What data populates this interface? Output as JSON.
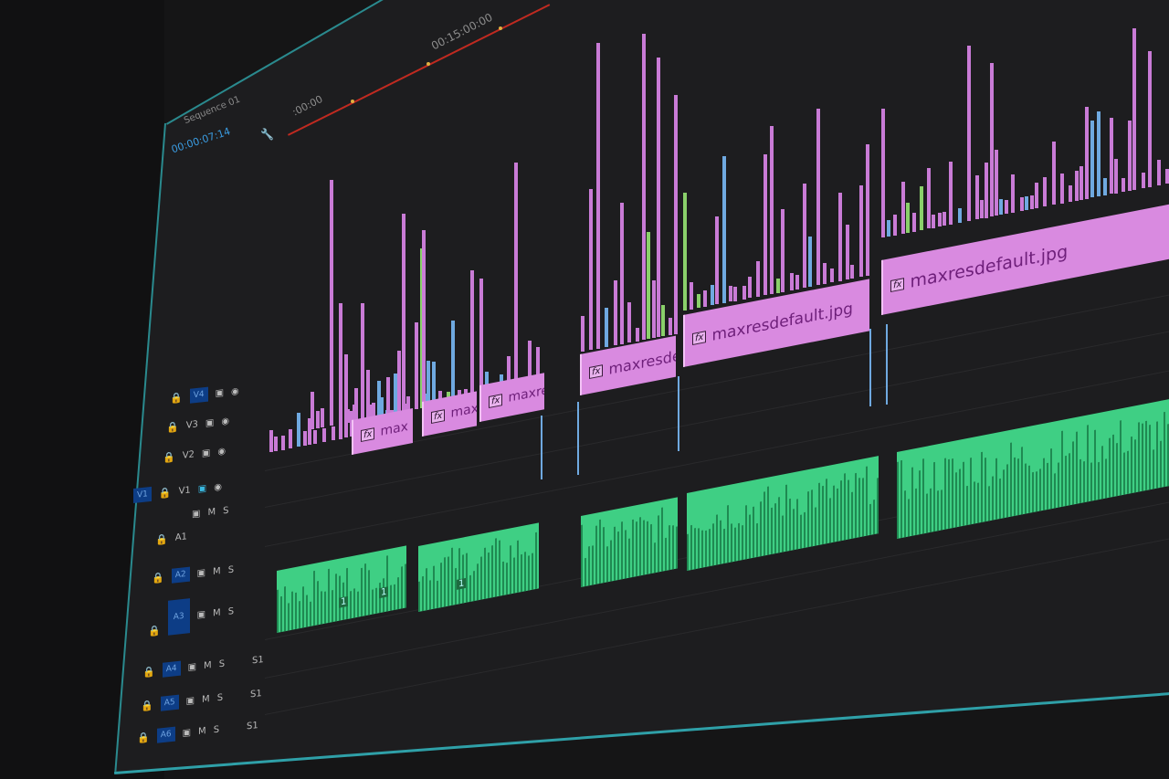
{
  "sequence": {
    "name": "Sequence 01",
    "timecode": "00:00:07:14"
  },
  "ruler": {
    "start_label": ":00:00",
    "mid_label": "00:15:00:00",
    "playhead_color": "#c02a20"
  },
  "tracks": {
    "video": [
      {
        "label": "V4"
      },
      {
        "label": "V3"
      },
      {
        "label": "V2"
      },
      {
        "label": "V1"
      }
    ],
    "audio": [
      {
        "label": "A1"
      },
      {
        "label": "A2",
        "m": "M",
        "s": "S"
      },
      {
        "label": "A3",
        "m": "M",
        "s": "S"
      },
      {
        "label": "A4",
        "m": "M",
        "s": "S",
        "extra": "S1"
      },
      {
        "label": "A5",
        "m": "M",
        "s": "S",
        "extra": "S1"
      },
      {
        "label": "A6",
        "m": "M",
        "s": "S",
        "extra": "S1"
      }
    ],
    "source_patch": "V1",
    "a1_m": "M",
    "a1_s": "S"
  },
  "video_clips": [
    {
      "fx": "fx",
      "label": "max"
    },
    {
      "fx": "fx",
      "label": "maxı"
    },
    {
      "fx": "fx",
      "label": "maxre"
    },
    {
      "fx": "fx",
      "label": "maxresde"
    },
    {
      "fx": "fx",
      "label": "maxresdefault.jpg"
    },
    {
      "fx": "fx",
      "label": "maxresdefault.jpg"
    }
  ],
  "audio_clip_markers": [
    "1",
    "1",
    "1"
  ],
  "colors": {
    "video_clip": "#d98ae0",
    "audio_clip": "#3fcf84",
    "track_target": "#0d3d86",
    "panel_border": "#2a8a8e"
  },
  "icons": [
    "lock-icon",
    "toggle-output-icon",
    "eye-icon",
    "wrench-icon",
    "fx-badge-icon"
  ]
}
